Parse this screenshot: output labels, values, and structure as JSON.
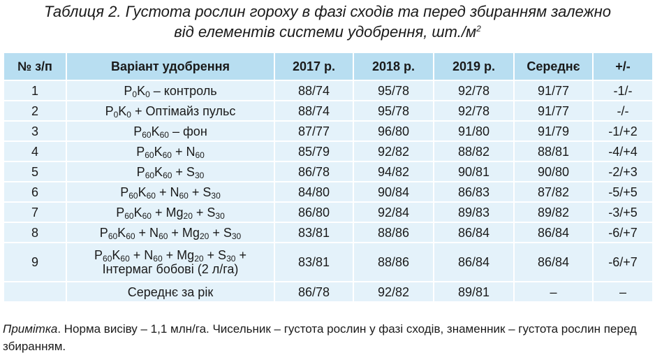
{
  "title": [
    {
      "text": "Таблиця 2. Густота рослин гороху в фазі сходів та перед збиранням залежно"
    },
    {
      "line": "від елементів системи удобрення, шт./м"
    },
    {
      "sup": "2"
    }
  ],
  "table": {
    "header": [
      "№ з/п",
      "Варіант удобрення",
      "2017 р.",
      "2018 р.",
      "2019 р.",
      "Середнє",
      "+/-"
    ],
    "rows": [
      {
        "no": "1",
        "variant": [
          {
            "text": "P"
          },
          {
            "sub": "0"
          },
          {
            "text": "K"
          },
          {
            "sub": "0"
          },
          {
            "text": "  – контроль"
          }
        ],
        "values": [
          "88/74",
          "95/78",
          "92/78",
          "91/77",
          "-1/-"
        ]
      },
      {
        "no": "2",
        "variant": [
          {
            "text": "P"
          },
          {
            "sub": "0"
          },
          {
            "text": "K"
          },
          {
            "sub": "0"
          },
          {
            "text": " + Оптімайз пульс"
          }
        ],
        "values": [
          "88/74",
          "95/78",
          "92/78",
          "91/77",
          "-/-"
        ]
      },
      {
        "no": "3",
        "variant": [
          {
            "text": "P"
          },
          {
            "sub": "60"
          },
          {
            "text": "K"
          },
          {
            "sub": "60"
          },
          {
            "text": " – фон"
          }
        ],
        "values": [
          "87/77",
          "96/80",
          "91/80",
          "91/79",
          "-1/+2"
        ]
      },
      {
        "no": "4",
        "variant": [
          {
            "text": "P"
          },
          {
            "sub": "60"
          },
          {
            "text": "K"
          },
          {
            "sub": "60"
          },
          {
            "text": " + N"
          },
          {
            "sub": "60"
          }
        ],
        "values": [
          "85/79",
          "92/82",
          "88/82",
          "88/81",
          "-4/+4"
        ]
      },
      {
        "no": "5",
        "variant": [
          {
            "text": "P"
          },
          {
            "sub": "60"
          },
          {
            "text": "K"
          },
          {
            "sub": "60"
          },
          {
            "text": " + S"
          },
          {
            "sub": "30"
          }
        ],
        "values": [
          "86/78",
          "94/82",
          "90/81",
          "90/80",
          "-2/+3"
        ]
      },
      {
        "no": "6",
        "variant": [
          {
            "text": "P"
          },
          {
            "sub": "60"
          },
          {
            "text": "K"
          },
          {
            "sub": "60"
          },
          {
            "text": " + N"
          },
          {
            "sub": "60"
          },
          {
            "text": " + S"
          },
          {
            "sub": "30"
          }
        ],
        "values": [
          "84/80",
          "90/84",
          "86/83",
          "87/82",
          "-5/+5"
        ]
      },
      {
        "no": "7",
        "variant": [
          {
            "text": "P"
          },
          {
            "sub": "60"
          },
          {
            "text": "K"
          },
          {
            "sub": "60"
          },
          {
            "text": " + Mg"
          },
          {
            "sub": "20"
          },
          {
            "text": " + S"
          },
          {
            "sub": "30"
          }
        ],
        "values": [
          "86/80",
          "92/84",
          "89/83",
          "89/82",
          "-3/+5"
        ]
      },
      {
        "no": "8",
        "variant": [
          {
            "text": "P"
          },
          {
            "sub": "60"
          },
          {
            "text": "K"
          },
          {
            "sub": "60"
          },
          {
            "text": " + N"
          },
          {
            "sub": "60"
          },
          {
            "text": " + Mg"
          },
          {
            "sub": "20"
          },
          {
            "text": " + S"
          },
          {
            "sub": "30"
          }
        ],
        "values": [
          "83/81",
          "88/86",
          "86/84",
          "86/84",
          "-6/+7"
        ]
      },
      {
        "no": "9",
        "variant": [
          {
            "text": "P"
          },
          {
            "sub": "60"
          },
          {
            "text": "K"
          },
          {
            "sub": "60"
          },
          {
            "text": " + N"
          },
          {
            "sub": "60"
          },
          {
            "text": " + Mg"
          },
          {
            "sub": "20"
          },
          {
            "text": " + S"
          },
          {
            "sub": "30"
          },
          {
            "text": " +"
          },
          {
            "line": "Інтермаг бобові (2 л/га)"
          }
        ],
        "values": [
          "83/81",
          "88/86",
          "86/84",
          "86/84",
          "-6/+7"
        ]
      }
    ],
    "footer": {
      "label": "Середнє за рік",
      "values": [
        "86/78",
        "92/82",
        "89/81",
        "–",
        "–"
      ]
    }
  },
  "note": [
    {
      "em": "Примітка"
    },
    {
      "text": ". Норма висіву – 1,1 млн/га. Чисельник – густота рослин у фазі сходів, знаменник – густота рослин перед збиранням."
    }
  ]
}
